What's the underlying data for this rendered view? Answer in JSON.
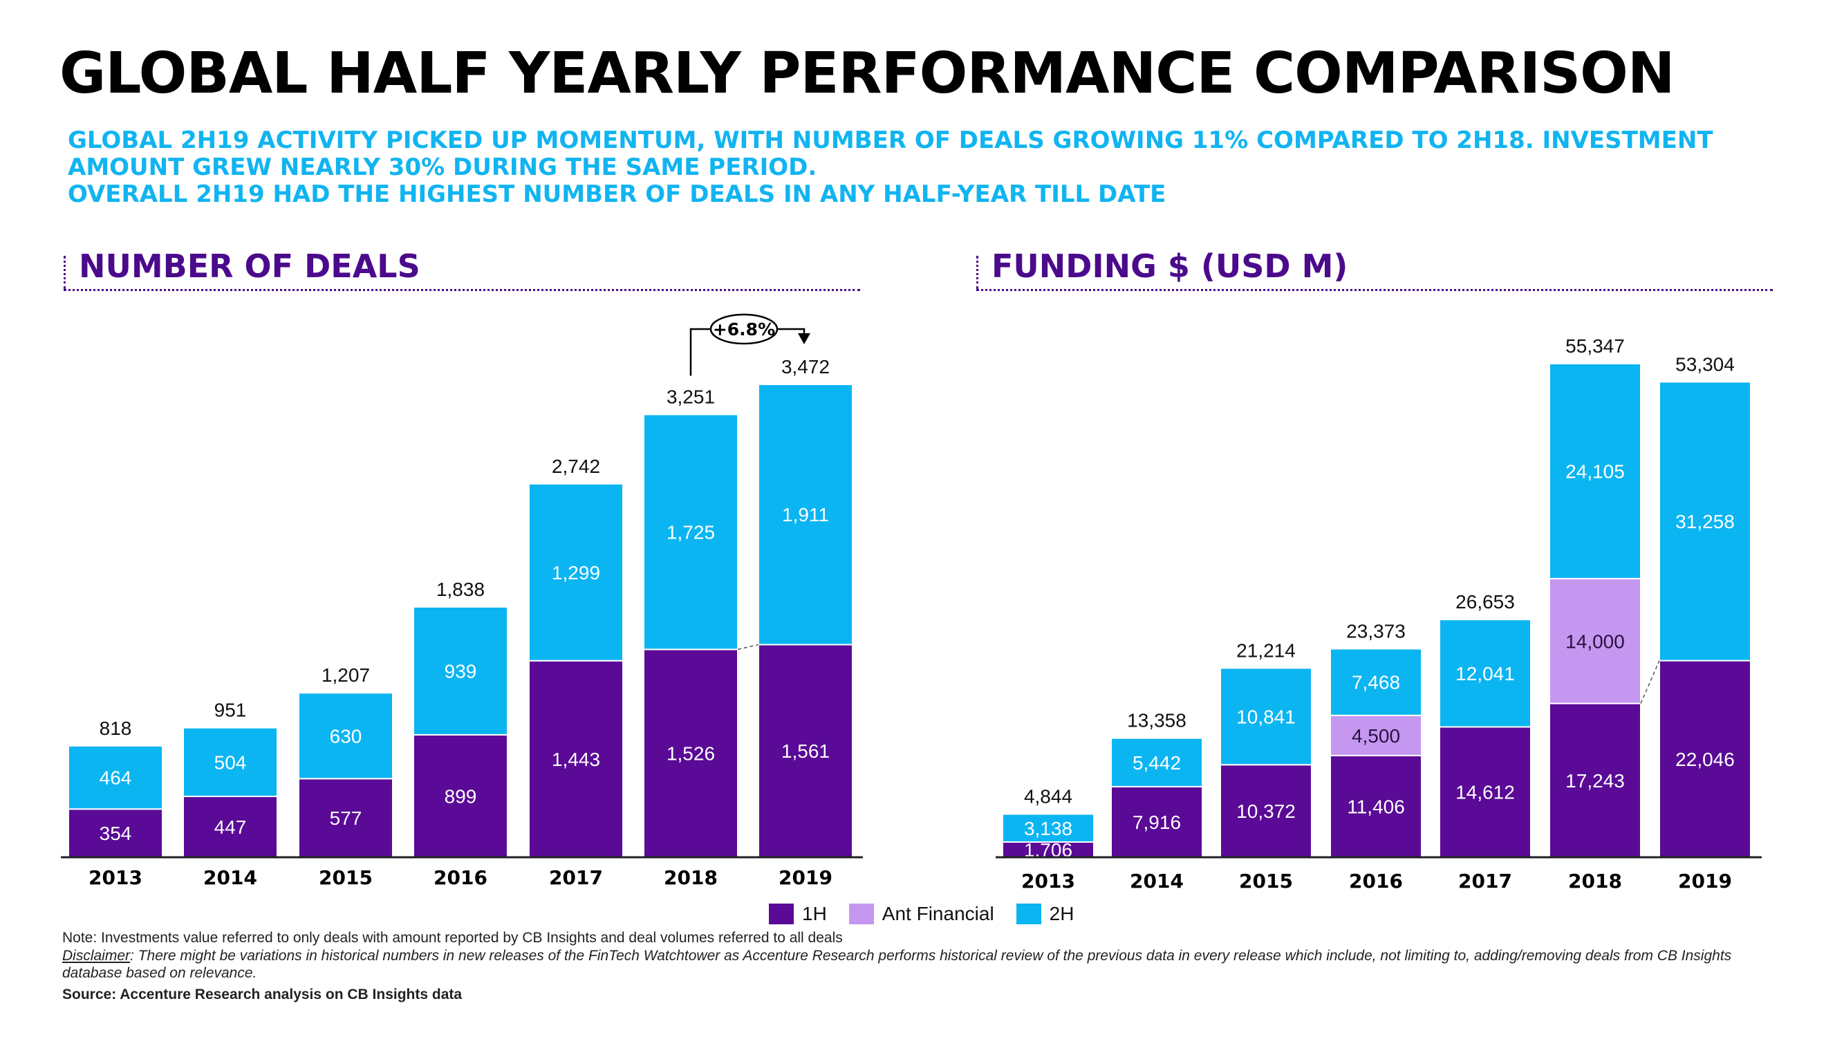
{
  "title": "GLOBAL HALF YEARLY PERFORMANCE COMPARISON",
  "subtitle_lines": [
    "GLOBAL 2H19 ACTIVITY PICKED UP MOMENTUM, WITH NUMBER OF DEALS GROWING 11% COMPARED TO 2H18. INVESTMENT",
    "AMOUNT GREW NEARLY 30% DURING THE SAME PERIOD.",
    "OVERALL 2H19 HAD THE HIGHEST NUMBER OF DEALS IN ANY HALF-YEAR TILL DATE"
  ],
  "colors": {
    "1H": "#5a0a96",
    "Ant Financial": "#c597f0",
    "2H": "#0bb5f2",
    "title": "#000000",
    "subtitle": "#10b4f0",
    "panel": "#4b0a8c"
  },
  "legend": [
    {
      "label": "1H",
      "color": "#5a0a96"
    },
    {
      "label": "Ant Financial",
      "color": "#c597f0"
    },
    {
      "label": "2H",
      "color": "#0bb5f2"
    }
  ],
  "footer": {
    "note": "Note: Investments value referred to only deals with amount reported by CB Insights and deal volumes referred to all deals",
    "disclaimer_label": "Disclaimer",
    "disclaimer_text": ": There might be variations in historical numbers in new releases of the FinTech Watchtower as Accenture Research performs historical review of the previous data in every release which include, not limiting to, adding/removing deals from CB Insights database based on relevance.",
    "source": "Source: Accenture Research analysis on CB Insights data"
  },
  "chart_data": [
    {
      "type": "bar",
      "stacked": true,
      "title": "NUMBER OF DEALS",
      "categories": [
        "2013",
        "2014",
        "2015",
        "2016",
        "2017",
        "2018",
        "2019"
      ],
      "series": [
        {
          "name": "1H",
          "values": [
            354,
            447,
            577,
            899,
            1443,
            1526,
            1561
          ]
        },
        {
          "name": "2H",
          "values": [
            464,
            504,
            630,
            939,
            1299,
            1725,
            1911
          ]
        }
      ],
      "value_labels": {
        "1H": [
          "354",
          "447",
          "577",
          "899",
          "1,443",
          "1,526",
          "1,561"
        ],
        "2H": [
          "464",
          "504",
          "630",
          "939",
          "1,299",
          "1,725",
          "1,911"
        ]
      },
      "totals": [
        "818",
        "951",
        "1,207",
        "1,838",
        "2,742",
        "3,251",
        "3,472"
      ],
      "annotation": "+6.8%",
      "ylim": [
        0,
        3472
      ]
    },
    {
      "type": "bar",
      "stacked": true,
      "title": "FUNDING $ (USD M)",
      "categories": [
        "2013",
        "2014",
        "2015",
        "2016",
        "2017",
        "2018",
        "2019"
      ],
      "series": [
        {
          "name": "1H",
          "values": [
            1706,
            7916,
            10372,
            11406,
            14612,
            17243,
            22046
          ]
        },
        {
          "name": "Ant Financial",
          "values": [
            0,
            0,
            0,
            4500,
            0,
            14000,
            0
          ]
        },
        {
          "name": "2H",
          "values": [
            3138,
            5442,
            10841,
            7468,
            12041,
            24105,
            31258
          ]
        }
      ],
      "value_labels": {
        "1H": [
          "1,706",
          "7,916",
          "10,372",
          "11,406",
          "14,612",
          "17,243",
          "22,046"
        ],
        "Ant Financial": [
          "",
          "",
          "",
          "4,500",
          "",
          "14,000",
          ""
        ],
        "2H": [
          "3,138",
          "5,442",
          "10,841",
          "7,468",
          "12,041",
          "24,105",
          "31,258"
        ]
      },
      "totals": [
        "4,844",
        "13,358",
        "21,214",
        "23,373",
        "26,653",
        "55,347",
        "53,304"
      ],
      "ylim": [
        0,
        55347
      ]
    }
  ]
}
